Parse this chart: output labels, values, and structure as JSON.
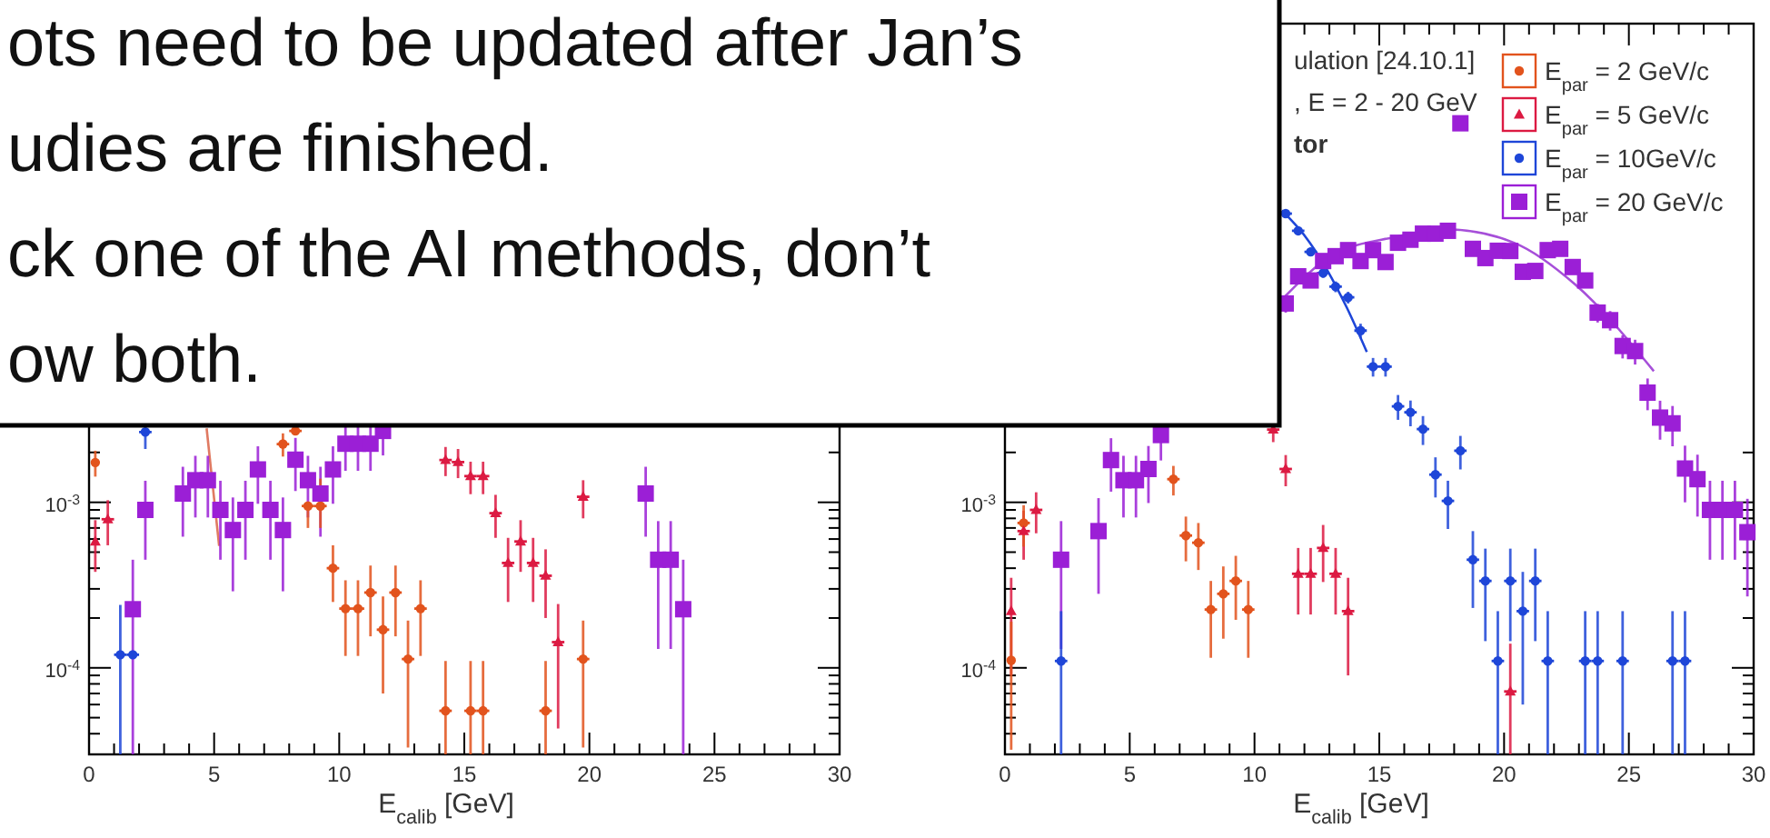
{
  "chart_data": [
    {
      "type": "scatter",
      "log": "y",
      "xlabel": "E$_{calib}$ [GeV]",
      "annotations": [
        "ots need to be updated after Jan’s",
        "udies are finished.",
        "ck one of the AI methods, don’t",
        "ow both."
      ],
      "xlim": [
        0,
        30
      ],
      "ylim": [
        3e-05,
        0.78
      ],
      "xticks": [
        0,
        {
          "value": 1,
          "label": null
        },
        {
          "value": 2,
          "label": null
        },
        {
          "value": 3,
          "label": null
        },
        {
          "value": 4,
          "label": null
        },
        5,
        {
          "value": 6,
          "label": null
        },
        {
          "value": 7,
          "label": null
        },
        {
          "value": 8,
          "label": null
        },
        {
          "value": 9,
          "label": null
        },
        10,
        {
          "value": 11,
          "label": null
        },
        {
          "value": 12,
          "label": null
        },
        {
          "value": 13,
          "label": null
        },
        {
          "value": 14,
          "label": null
        },
        15,
        {
          "value": 16,
          "label": null
        },
        {
          "value": 17,
          "label": null
        },
        {
          "value": 18,
          "label": null
        },
        {
          "value": 19,
          "label": null
        },
        20,
        {
          "value": 21,
          "label": null
        },
        {
          "value": 22,
          "label": null
        },
        {
          "value": 23,
          "label": null
        },
        {
          "value": 24,
          "label": null
        },
        25,
        {
          "value": 26,
          "label": null
        },
        {
          "value": 27,
          "label": null
        },
        {
          "value": 28,
          "label": null
        },
        {
          "value": 29,
          "label": null
        },
        30
      ],
      "yticks": [
        {
          "value": 4e-05,
          "label": null
        },
        {
          "value": 5e-05,
          "label": null
        },
        {
          "value": 6e-05,
          "label": null
        },
        {
          "value": 7e-05,
          "label": null
        },
        {
          "value": 8e-05,
          "label": null
        },
        {
          "value": 9e-05,
          "label": null
        },
        {
          "value": 0.0001,
          "label": "10$^{-4}$"
        },
        {
          "value": 0.0002,
          "label": null
        },
        {
          "value": 0.0003,
          "label": null
        },
        {
          "value": 0.0004,
          "label": null
        },
        {
          "value": 0.0005,
          "label": null
        },
        {
          "value": 0.0006,
          "label": null
        },
        {
          "value": 0.0007,
          "label": null
        },
        {
          "value": 0.0008,
          "label": null
        },
        {
          "value": 0.0009,
          "label": null
        },
        {
          "value": 0.001,
          "label": "10$^{-3}$"
        },
        {
          "value": 0.002,
          "label": null
        }
      ],
      "series": [
        {
          "color": "#e2531d",
          "marker": "circle",
          "x": [
            0.25,
            7.75,
            8.25,
            8.75,
            9.25,
            9.75,
            10.25,
            10.75,
            11.25,
            11.75,
            12.25,
            12.75,
            13.25,
            14.25,
            15.25,
            15.75,
            18.25,
            19.75
          ],
          "values": [
            0.00174,
            0.00225,
            0.0027,
            0.00095,
            0.00095,
            0.0004,
            0.000228,
            0.000228,
            0.000285,
            0.00017,
            0.000285,
            0.000113,
            0.000228,
            5.5e-05,
            5.5e-05,
            5.5e-05,
            5.5e-05,
            0.000113
          ],
          "errors": [
            0.00031,
            0.00036,
            null,
            [
              0.0007,
              0.00095
            ],
            [
              0.0007,
              0.00139
            ],
            0.00015,
            0.00011,
            0.00011,
            0.00013,
            0.0001,
            0.00013,
            8e-05,
            0.00011,
            [
              3e-05,
              0.00011
            ],
            [
              3e-05,
              0.00011
            ],
            [
              3e-05,
              0.00011
            ],
            [
              3e-05,
              0.00011
            ],
            8e-05
          ],
          "xerrors": [
            null,
            0.25,
            0.25,
            0.25,
            0.25,
            0.25,
            0.25,
            0.25,
            0.25,
            0.25,
            0.25,
            0.25,
            0.25,
            0.25,
            0.25,
            0.25,
            0.25,
            0.25
          ]
        },
        {
          "color": "#dc1a42",
          "marker": "triangle",
          "x": [
            0.25,
            0.75,
            14.25,
            14.75,
            15.25,
            15.75,
            16.25,
            16.75,
            17.25,
            17.75,
            18.25,
            18.75,
            19.75
          ],
          "values": [
            0.00058,
            0.00079,
            0.0018,
            0.00175,
            0.00144,
            0.00144,
            0.00086,
            0.00043,
            0.00058,
            0.00043,
            0.00036,
            0.000143,
            0.00108
          ],
          "errors": [
            0.0002,
            0.00024,
            0.00036,
            0.00035,
            0.00032,
            0.00032,
            0.00025,
            0.00018,
            0.0002,
            0.00018,
            0.00016,
            0.0001,
            0.00028
          ],
          "xerrors": [
            null,
            0.25,
            0.25,
            0.25,
            0.25,
            0.25,
            0.25,
            0.25,
            0.25,
            0.25,
            0.25,
            0.25,
            0.25
          ]
        },
        {
          "color": "#1e46d8",
          "marker": "circle",
          "x": [
            1.25,
            1.75,
            2.25
          ],
          "values": [
            0.00012,
            0.00012,
            0.00266
          ],
          "errors": [
            [
              3e-05,
              0.00024
            ],
            null,
            0.00056
          ],
          "xerrors": [
            0.25,
            0.25,
            0.25
          ]
        },
        {
          "color": "#9b1fd6",
          "marker": "square",
          "x": [
            1.75,
            2.25,
            3.75,
            4.25,
            4.75,
            5.25,
            5.75,
            6.25,
            6.75,
            7.25,
            7.75,
            8.25,
            8.75,
            9.25,
            9.75,
            10.25,
            10.75,
            11.25,
            11.75,
            22.25,
            22.75,
            23.25,
            23.75
          ],
          "values": [
            0.000226,
            0.0009,
            0.00113,
            0.00136,
            0.00136,
            0.0009,
            0.00068,
            0.0009,
            0.00158,
            0.0009,
            0.00068,
            0.00181,
            0.00136,
            0.00113,
            0.00158,
            0.00226,
            0.00226,
            0.00226,
            0.0027,
            0.00113,
            0.00045,
            0.00045,
            0.000226
          ],
          "errors": [
            [
              3e-05,
              0.00045
            ],
            0.00045,
            0.00051,
            0.00055,
            0.00055,
            0.00045,
            0.00039,
            0.00045,
            0.0006,
            0.00045,
            0.00039,
            0.00064,
            0.00055,
            0.00051,
            0.0006,
            0.00071,
            0.00071,
            0.00071,
            0.00078,
            0.00051,
            0.00032,
            0.00032,
            [
              3e-05,
              0.00045
            ]
          ],
          "xerrors": [
            0.25,
            0.25,
            0.25,
            0.25,
            0.25,
            0.25,
            0.25,
            0.25,
            0.25,
            0.25,
            0.25,
            0.25,
            0.25,
            0.25,
            0.25,
            0.25,
            0.25,
            0.25,
            0.25,
            0.25,
            0.25,
            0.25,
            0.25
          ]
        },
        {
          "type": "line",
          "color": "#e07a62",
          "x": [
            4.7,
            5.2
          ],
          "values": [
            0.0028,
            0.000545
          ]
        }
      ]
    },
    {
      "type": "scatter",
      "log": "y",
      "xlabel": "E$_{calib}$ [GeV]",
      "legend": "top right",
      "annotations": [
        "ulation [24.10.1]",
        ", E = 2 - 20 GeV",
        "tor"
      ],
      "xlim": [
        0,
        30
      ],
      "ylim": [
        3e-05,
        0.78
      ],
      "xticks": [
        0,
        {
          "value": 1,
          "label": null
        },
        {
          "value": 2,
          "label": null
        },
        {
          "value": 3,
          "label": null
        },
        {
          "value": 4,
          "label": null
        },
        5,
        {
          "value": 6,
          "label": null
        },
        {
          "value": 7,
          "label": null
        },
        {
          "value": 8,
          "label": null
        },
        {
          "value": 9,
          "label": null
        },
        10,
        {
          "value": 11,
          "label": null
        },
        {
          "value": 12,
          "label": null
        },
        {
          "value": 13,
          "label": null
        },
        {
          "value": 14,
          "label": null
        },
        15,
        {
          "value": 16,
          "label": null
        },
        {
          "value": 17,
          "label": null
        },
        {
          "value": 18,
          "label": null
        },
        {
          "value": 19,
          "label": null
        },
        20,
        {
          "value": 21,
          "label": null
        },
        {
          "value": 22,
          "label": null
        },
        {
          "value": 23,
          "label": null
        },
        {
          "value": 24,
          "label": null
        },
        25,
        {
          "value": 26,
          "label": null
        },
        {
          "value": 27,
          "label": null
        },
        {
          "value": 28,
          "label": null
        },
        {
          "value": 29,
          "label": null
        },
        30
      ],
      "yticks": [
        {
          "value": 4e-05,
          "label": null
        },
        {
          "value": 5e-05,
          "label": null
        },
        {
          "value": 6e-05,
          "label": null
        },
        {
          "value": 7e-05,
          "label": null
        },
        {
          "value": 8e-05,
          "label": null
        },
        {
          "value": 9e-05,
          "label": null
        },
        {
          "value": 0.0001,
          "label": "10$^{-4}$"
        },
        {
          "value": 0.0002,
          "label": null
        },
        {
          "value": 0.0003,
          "label": null
        },
        {
          "value": 0.0004,
          "label": null
        },
        {
          "value": 0.0005,
          "label": null
        },
        {
          "value": 0.0006,
          "label": null
        },
        {
          "value": 0.0007,
          "label": null
        },
        {
          "value": 0.0008,
          "label": null
        },
        {
          "value": 0.0009,
          "label": null
        },
        {
          "value": 0.001,
          "label": "10$^{-3}$"
        },
        {
          "value": 0.002,
          "label": null
        }
      ],
      "series": [
        {
          "name": "E$_{par}$ = 2 GeV/c",
          "color": "#e2531d",
          "marker": "circle",
          "x": [
            0.25,
            0.75,
            6.75,
            7.25,
            7.75,
            8.25,
            8.75,
            9.25,
            9.75
          ],
          "values": [
            0.000111,
            0.00075,
            0.00138,
            0.00063,
            0.00057,
            0.000225,
            0.00028,
            0.000335,
            0.000225
          ],
          "errors": [
            7.9e-05,
            0.00021,
            0.00028,
            0.00019,
            0.00018,
            0.00011,
            0.00013,
            0.00014,
            0.00011
          ],
          "xerrors": [
            null,
            0.25,
            0.25,
            0.25,
            0.25,
            0.25,
            0.25,
            0.25,
            0.25
          ]
        },
        {
          "name": "E$_{par}$ = 5 GeV/c",
          "color": "#dc1a42",
          "marker": "triangle",
          "x": [
            0.25,
            0.75,
            1.25,
            10.75,
            11.25,
            11.75,
            12.25,
            12.75,
            13.25,
            13.75,
            20.25
          ],
          "values": [
            0.00022,
            0.00067,
            0.0009,
            0.00275,
            0.00159,
            0.00037,
            0.00037,
            0.00053,
            0.00037,
            0.00022,
            7.2e-05
          ],
          "errors": [
            0.00013,
            0.00022,
            0.00025,
            0.00044,
            0.00034,
            0.00016,
            0.00016,
            0.0002,
            0.00016,
            0.00013,
            [
              3e-05,
              0.00014
            ]
          ],
          "xerrors": [
            null,
            0.25,
            0.25,
            0.25,
            0.25,
            0.25,
            0.25,
            0.25,
            0.25,
            0.25,
            0.25
          ]
        },
        {
          "name": "E$_{par}$ = 10GeV/c",
          "color": "#1e46d8",
          "marker": "circle",
          "x": [
            2.25,
            11.25,
            11.75,
            12.25,
            12.75,
            13.25,
            13.75,
            14.25,
            14.75,
            15.25,
            15.75,
            16.25,
            16.75,
            17.25,
            17.75,
            18.25,
            18.75,
            19.25,
            19.75,
            20.25,
            20.75,
            21.25,
            21.75,
            23.25,
            23.75,
            24.75,
            26.75,
            27.25
          ],
          "values": [
            0.00011,
            0.0555,
            0.0437,
            0.0326,
            0.0243,
            0.0201,
            0.0173,
            0.0109,
            0.0066,
            0.0066,
            0.0038,
            0.0035,
            0.00277,
            0.00147,
            0.00102,
            0.00205,
            0.00045,
            0.000335,
            0.00011,
            0.000335,
            0.00022,
            0.000335,
            0.00011,
            0.00011,
            0.00011,
            0.00011,
            0.00011,
            0.00011
          ],
          "errors": [
            [
              3e-05,
              0.00022
            ],
            0.0025,
            0.0022,
            0.0019,
            0.0016,
            0.0015,
            0.0014,
            0.0011,
            0.00085,
            0.00085,
            0.00065,
            0.00062,
            0.00055,
            0.0004,
            0.00033,
            0.00047,
            0.00022,
            0.00019,
            [
              3e-05,
              0.00022
            ],
            0.00019,
            0.00016,
            0.00019,
            [
              3e-05,
              0.00022
            ],
            [
              3e-05,
              0.00022
            ],
            [
              3e-05,
              0.00022
            ],
            [
              3e-05,
              0.00022
            ],
            [
              3e-05,
              0.00022
            ],
            [
              3e-05,
              0.00022
            ]
          ],
          "xerrors": [
            0.25,
            0.25,
            0.25,
            0.25,
            0.25,
            0.25,
            0.25,
            0.25,
            0.25,
            0.25,
            0.25,
            0.25,
            0.25,
            0.25,
            0.25,
            0.25,
            0.25,
            0.25,
            0.25,
            0.25,
            0.25,
            0.25,
            0.25,
            0.25,
            0.25,
            0.25,
            0.25,
            0.25
          ]
        },
        {
          "name": "E$_{par}$ = 20 GeV/c",
          "color": "#9b1fd6",
          "marker": "square",
          "x": [
            2.25,
            3.75,
            4.25,
            4.75,
            5.25,
            5.75,
            6.25,
            11.25,
            11.75,
            12.25,
            12.75,
            13.25,
            13.75,
            14.25,
            14.75,
            15.25,
            15.75,
            16.25,
            16.75,
            17.25,
            17.75,
            18.25,
            18.75,
            19.25,
            19.75,
            20.25,
            20.75,
            21.25,
            21.75,
            22.25,
            22.75,
            23.25,
            23.75,
            24.25,
            24.75,
            25.25,
            25.75,
            26.25,
            26.75,
            27.25,
            27.75,
            28.25,
            28.75,
            29.25,
            29.75
          ],
          "values": [
            0.00045,
            0.00067,
            0.0018,
            0.00136,
            0.00136,
            0.00159,
            0.00255,
            0.0159,
            0.0232,
            0.0219,
            0.0287,
            0.0307,
            0.0334,
            0.0287,
            0.0334,
            0.0283,
            0.037,
            0.0386,
            0.042,
            0.042,
            0.0437,
            0.195,
            0.034,
            0.0299,
            0.0331,
            0.033,
            0.0247,
            0.025,
            0.0334,
            0.034,
            0.0264,
            0.0219,
            0.014,
            0.0126,
            0.0088,
            0.0082,
            0.0046,
            0.00325,
            0.003,
            0.0016,
            0.00138,
            0.0009,
            0.0009,
            0.0009,
            0.00066
          ],
          "errors": [
            0.00032,
            0.00039,
            0.00064,
            0.00055,
            0.00055,
            0.0006,
            0.00076,
            0.0019,
            0.0023,
            0.0022,
            0.0025,
            0.0026,
            0.0027,
            0.0025,
            0.0027,
            0.0025,
            0.0029,
            0.003,
            0.0031,
            0.0031,
            0.0031,
            0.0066,
            0.0028,
            0.0026,
            0.0027,
            0.0027,
            0.0024,
            0.0024,
            0.0027,
            0.0028,
            0.0024,
            0.0022,
            0.0018,
            0.0017,
            0.0014,
            0.0014,
            0.001,
            0.00086,
            0.00082,
            0.0006,
            0.00056,
            0.00045,
            0.00045,
            0.00045,
            0.00039
          ],
          "xerrors": [
            0.25,
            0.25,
            0.25,
            0.25,
            0.25,
            0.25,
            0.25,
            0.25,
            0.25,
            0.25,
            0.25,
            0.25,
            0.25,
            0.25,
            0.25,
            0.25,
            0.25,
            0.25,
            0.25,
            0.25,
            0.25,
            0.25,
            0.25,
            0.25,
            0.25,
            0.25,
            0.25,
            0.25,
            0.25,
            0.25,
            0.25,
            0.25,
            0.25,
            0.25,
            0.25,
            0.25,
            0.25,
            0.25,
            0.25,
            0.25,
            0.25,
            0.25,
            0.25,
            0.25,
            0.25
          ]
        },
        {
          "type": "line",
          "color": "#1e46d8",
          "x": [
            11.1,
            12.0,
            12.9,
            13.7,
            14.5
          ],
          "values": [
            0.058,
            0.041,
            0.0255,
            0.015,
            0.0081
          ]
        },
        {
          "type": "line",
          "color": "#a64fd9",
          "x": [
            11.2,
            13.1,
            15.6,
            17.75,
            20.4,
            22.85,
            26.0
          ],
          "values": [
            0.0174,
            0.031,
            0.04,
            0.0445,
            0.037,
            0.0207,
            0.0062
          ]
        }
      ]
    }
  ]
}
